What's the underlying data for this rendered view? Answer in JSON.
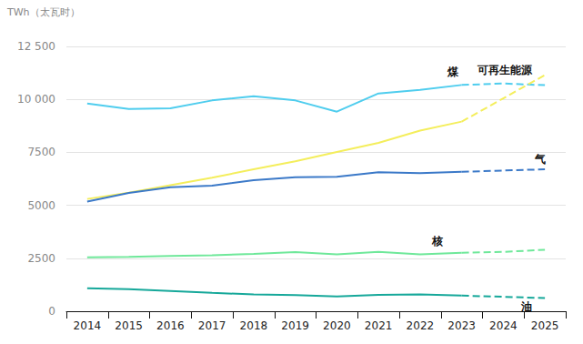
{
  "chart_data": {
    "type": "line",
    "ylabel": "TWh（太瓦时）",
    "categories": [
      "2014",
      "2015",
      "2016",
      "2017",
      "2018",
      "2019",
      "2020",
      "2021",
      "2022",
      "2023",
      "2024",
      "2025"
    ],
    "ylim": [
      0,
      12500
    ],
    "yticks": [
      0,
      2500,
      5000,
      7500,
      {
        "value": 10000,
        "label": "10 000"
      },
      {
        "value": 12500,
        "label": "12 500"
      }
    ],
    "grid": true,
    "series": [
      {
        "color": "#4fcdee",
        "line_style": "solid",
        "values": [
          9800,
          9550,
          9580,
          9950,
          10150,
          9950,
          9420,
          10280,
          10450,
          10680,
          null,
          null
        ]
      },
      {
        "color": "#f4ee5c",
        "line_style": "solid",
        "values": [
          5300,
          5600,
          5950,
          6300,
          6700,
          7080,
          7520,
          7950,
          8530,
          8950,
          null,
          null
        ]
      },
      {
        "color": "#3b79c8",
        "line_style": "solid",
        "values": [
          5180,
          5580,
          5850,
          5930,
          6190,
          6320,
          6350,
          6560,
          6520,
          6580,
          null,
          null
        ]
      },
      {
        "color": "#6fe89a",
        "line_style": "solid",
        "values": [
          2540,
          2570,
          2610,
          2640,
          2710,
          2790,
          2680,
          2800,
          2680,
          2760,
          null,
          null
        ]
      },
      {
        "color": "#16a89a",
        "line_style": "solid",
        "values": [
          1080,
          1040,
          960,
          870,
          790,
          760,
          700,
          770,
          800,
          740,
          null,
          null
        ]
      },
      {
        "name": "煤",
        "color": "#4fcdee",
        "line_style": "dashed",
        "values": [
          null,
          null,
          null,
          null,
          null,
          null,
          null,
          null,
          null,
          10680,
          10750,
          10670
        ]
      },
      {
        "name": "可再生能源",
        "color": "#f4ee5c",
        "line_style": "dashed",
        "values": [
          null,
          null,
          null,
          null,
          null,
          null,
          null,
          null,
          null,
          8950,
          10050,
          11150
        ]
      },
      {
        "name": "气",
        "color": "#3b79c8",
        "line_style": "dashed",
        "values": [
          null,
          null,
          null,
          null,
          null,
          null,
          null,
          null,
          null,
          6580,
          6640,
          6700
        ]
      },
      {
        "name": "核",
        "color": "#6fe89a",
        "line_style": "dashed",
        "values": [
          null,
          null,
          null,
          null,
          null,
          null,
          null,
          null,
          null,
          2760,
          2800,
          2900
        ]
      },
      {
        "name": "油",
        "color": "#16a89a",
        "line_style": "dashed",
        "values": [
          null,
          null,
          null,
          null,
          null,
          null,
          null,
          null,
          null,
          740,
          680,
          620
        ]
      }
    ]
  }
}
